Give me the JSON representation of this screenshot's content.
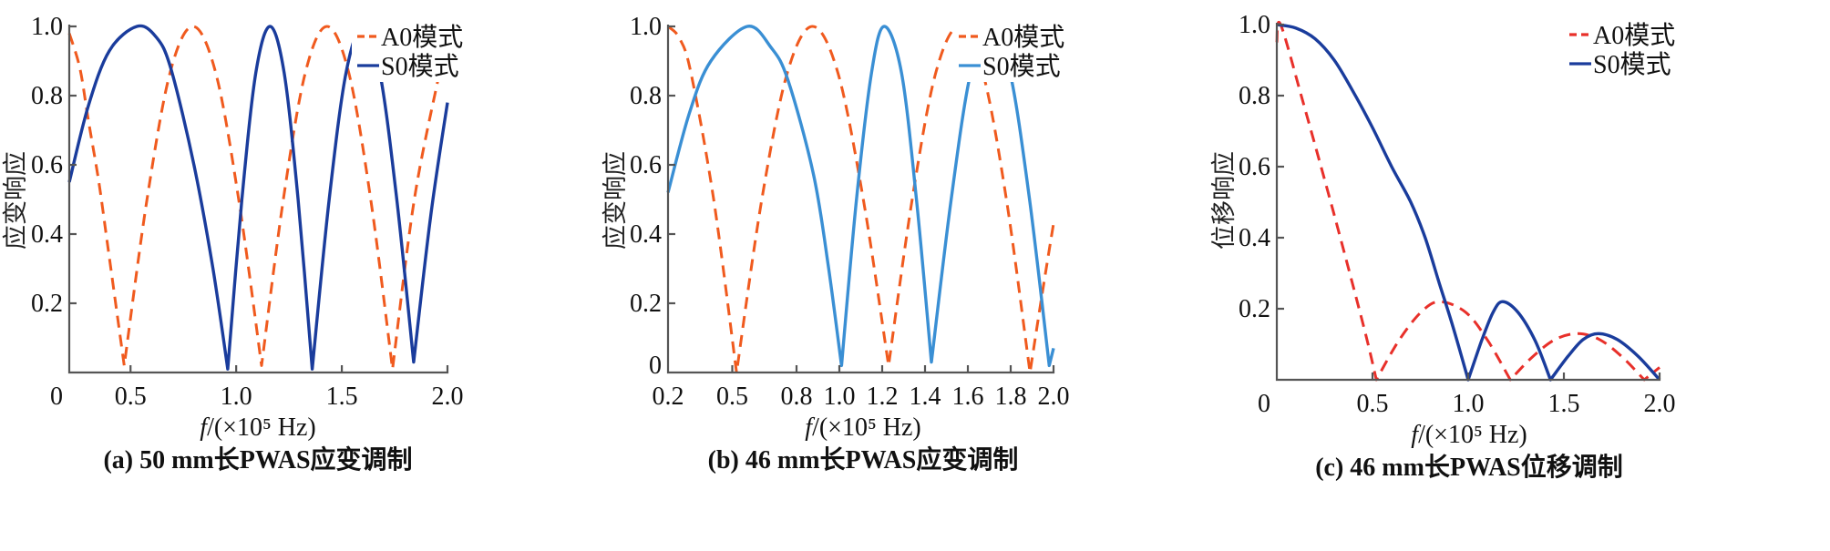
{
  "chart_data": [
    {
      "type": "line",
      "caption": "(a) 50 mm长PWAS应变调制",
      "ylabel": "应变响应",
      "xlabel_var": "f",
      "xlabel_rest": "/(×10⁵ Hz)",
      "xlim": [
        0.21,
        2.0
      ],
      "ylim": [
        0,
        1.0
      ],
      "xticks": [
        0.21,
        0.5,
        1.0,
        1.5,
        2.0
      ],
      "xtick_labels": [
        "0",
        "0.5",
        "1.0",
        "1.5",
        "2.0"
      ],
      "yticks": [
        0.2,
        0.4,
        0.6,
        0.8,
        1.0
      ],
      "ytick_labels": [
        "0.2",
        "0.4",
        "0.6",
        "0.8",
        "1.0"
      ],
      "legend_position": "top-right",
      "series": [
        {
          "name": "A0模式",
          "style": "dashed",
          "color": "#f05a1e",
          "x": [
            0.21,
            0.26,
            0.3,
            0.35,
            0.4,
            0.47,
            0.578,
            0.687,
            0.795,
            0.903,
            1.012,
            1.12,
            1.223,
            1.327,
            1.43,
            1.533,
            1.637,
            1.74,
            1.843,
            1.96
          ],
          "y": [
            0.98,
            0.88,
            0.73,
            0.55,
            0.33,
            0.02,
            0.5,
            0.866,
            1.0,
            0.866,
            0.5,
            0.02,
            0.5,
            0.866,
            1.0,
            0.866,
            0.5,
            0.01,
            0.5,
            0.86
          ]
        },
        {
          "name": "S0模式",
          "style": "solid",
          "color": "#1a3c9c",
          "x": [
            0.21,
            0.3,
            0.4,
            0.53,
            0.62,
            0.69,
            0.8,
            0.89,
            0.96,
            1.027,
            1.093,
            1.16,
            1.227,
            1.293,
            1.36,
            1.44,
            1.52,
            1.6,
            1.68,
            1.76,
            1.84,
            1.92,
            2.0
          ],
          "y": [
            0.55,
            0.77,
            0.93,
            1.0,
            0.97,
            0.88,
            0.6,
            0.3,
            0.01,
            0.5,
            0.866,
            1.0,
            0.866,
            0.5,
            0.01,
            0.5,
            0.866,
            1.0,
            0.866,
            0.5,
            0.03,
            0.45,
            0.78
          ]
        }
      ]
    },
    {
      "type": "line",
      "caption": "(b) 46 mm长PWAS应变调制",
      "ylabel": "应变响应",
      "xlabel_var": "f",
      "xlabel_rest": "/(×10⁵ Hz)",
      "xlim": [
        0.2,
        2.0
      ],
      "ylim": [
        0,
        1.0
      ],
      "xticks": [
        0.2,
        0.5,
        0.8,
        1.0,
        1.2,
        1.4,
        1.6,
        1.8,
        2.0
      ],
      "xtick_labels": [
        "0.2",
        "0.5",
        "0.8",
        "1.0",
        "1.2",
        "1.4",
        "1.6",
        "1.8",
        "2.0"
      ],
      "yticks": [
        0,
        0.2,
        0.4,
        0.6,
        0.8,
        1.0
      ],
      "ytick_labels": [
        "0",
        "0.2",
        "0.4",
        "0.6",
        "0.8",
        "1.0"
      ],
      "legend_position": "top-right",
      "series": [
        {
          "name": "A0模式",
          "style": "dashed",
          "color": "#f05a1e",
          "x": [
            0.2,
            0.253,
            0.307,
            0.413,
            0.52,
            0.638,
            0.757,
            0.875,
            0.993,
            1.112,
            1.23,
            1.34,
            1.45,
            1.56,
            1.67,
            1.78,
            1.89,
            1.945,
            2.0
          ],
          "y": [
            1.0,
            0.966,
            0.866,
            0.5,
            0.0,
            0.5,
            0.866,
            1.0,
            0.866,
            0.5,
            0.02,
            0.5,
            0.866,
            1.0,
            0.866,
            0.5,
            0.0,
            0.22,
            0.43
          ]
        },
        {
          "name": "S0模式",
          "style": "solid",
          "color": "#3a8fd4",
          "x": [
            0.2,
            0.3,
            0.4,
            0.57,
            0.68,
            0.76,
            0.88,
            0.95,
            1.01,
            1.08,
            1.15,
            1.21,
            1.29,
            1.36,
            1.43,
            1.522,
            1.613,
            1.705,
            1.797,
            1.888,
            1.98,
            2.0
          ],
          "y": [
            0.52,
            0.75,
            0.9,
            1.0,
            0.94,
            0.845,
            0.57,
            0.3,
            0.02,
            0.5,
            0.866,
            1.0,
            0.866,
            0.5,
            0.03,
            0.5,
            0.866,
            1.0,
            0.866,
            0.5,
            0.02,
            0.07
          ]
        }
      ]
    },
    {
      "type": "line",
      "caption": "(c) 46 mm长PWAS位移调制",
      "ylabel": "位移响应",
      "xlabel_var": "f",
      "xlabel_rest": "/(×10⁵ Hz)",
      "xlim": [
        0,
        2.0
      ],
      "ylim": [
        0,
        1.0
      ],
      "xticks": [
        0,
        0.5,
        1.0,
        1.5,
        2.0
      ],
      "xtick_labels": [
        "0",
        "0.5",
        "1.0",
        "1.5",
        "2.0"
      ],
      "yticks": [
        0.2,
        0.4,
        0.6,
        0.8,
        1.0
      ],
      "ytick_labels": [
        "0.2",
        "0.4",
        "0.6",
        "0.8",
        "1.0"
      ],
      "legend_position": "top-right",
      "series": [
        {
          "name": "A0模式",
          "style": "dashed",
          "color": "#e8302a",
          "x": [
            0,
            0.02,
            0.138,
            0.297,
            0.456,
            0.52,
            0.637,
            0.753,
            0.85,
            0.987,
            1.103,
            1.22,
            1.337,
            1.453,
            1.57,
            1.687,
            1.803,
            1.92,
            2.0
          ],
          "y": [
            0.95,
            1.0,
            0.78,
            0.47,
            0.145,
            0.0,
            0.11,
            0.19,
            0.22,
            0.19,
            0.11,
            0.0,
            0.065,
            0.113,
            0.13,
            0.113,
            0.065,
            0.0,
            0.035
          ]
        },
        {
          "name": "S0模式",
          "style": "solid",
          "color": "#1a3c9c",
          "x": [
            0,
            0.1,
            0.2,
            0.3,
            0.4,
            0.5,
            0.6,
            0.7,
            0.775,
            0.85,
            0.92,
            1.0,
            1.07,
            1.13,
            1.18,
            1.26,
            1.35,
            1.43,
            1.52,
            1.6,
            1.68,
            1.78,
            1.89,
            2.0
          ],
          "y": [
            1.0,
            0.99,
            0.96,
            0.9,
            0.81,
            0.71,
            0.6,
            0.5,
            0.4,
            0.27,
            0.15,
            0.0,
            0.11,
            0.19,
            0.22,
            0.19,
            0.11,
            0.0,
            0.065,
            0.113,
            0.13,
            0.113,
            0.065,
            0.0
          ]
        }
      ]
    }
  ]
}
